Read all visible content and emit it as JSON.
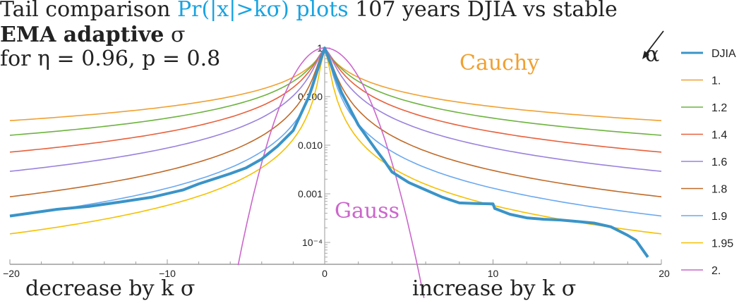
{
  "title": {
    "line1_prefix": "Tail comparison ",
    "line1_highlight": "Pr(|x|>kσ) plots",
    "line1_suffix": " 107 years DJIA vs stable",
    "line2_bold": "EMA adaptive",
    "line2_sigma": " σ",
    "line3": "for η = 0.96, p = 0.8"
  },
  "annotations": {
    "cauchy": "Cauchy",
    "gauss": "Gauss",
    "alpha": "α",
    "left_caption": "decrease by k σ",
    "right_caption": "increase by k σ"
  },
  "chart_data": {
    "type": "line",
    "title": "Tail comparison Pr(|x|>kσ) plots 107 years DJIA vs stable",
    "xlabel_left": "decrease by k σ",
    "xlabel_right": "increase by k σ",
    "ylabel": "",
    "xlim": [
      -20,
      20
    ],
    "ylim": [
      5e-05,
      1
    ],
    "yscale": "log",
    "x_ticks": [
      {
        "value": -20,
        "label": "−20"
      },
      {
        "value": -10,
        "label": "−10"
      },
      {
        "value": 0,
        "label": "0"
      },
      {
        "value": 10,
        "label": "10"
      },
      {
        "value": 20,
        "label": "20"
      }
    ],
    "y_ticks": [
      {
        "value": 1,
        "label": "1"
      },
      {
        "value": 0.1,
        "label": "0.100"
      },
      {
        "value": 0.01,
        "label": "0.010"
      },
      {
        "value": 0.001,
        "label": "0.001"
      },
      {
        "value": 0.0001,
        "label": "10⁻⁴"
      }
    ],
    "legend_title": "α",
    "legend_position": "right",
    "series": [
      {
        "name": "DJIA",
        "color": "#3a94c8",
        "width": 4,
        "x": [
          -20,
          -17,
          -15,
          -13,
          -11,
          -9,
          -8,
          -6,
          -5,
          -4,
          -3,
          -2,
          -1,
          0,
          1,
          2,
          3,
          3.5,
          4,
          5,
          6,
          7,
          8,
          9,
          10,
          10.1,
          11,
          12,
          13,
          14,
          15,
          16,
          17,
          18,
          18.5,
          19.2
        ],
        "y": [
          0.00035,
          0.00048,
          0.00055,
          0.00068,
          0.00085,
          0.0012,
          0.0016,
          0.0026,
          0.0034,
          0.0052,
          0.0095,
          0.02,
          0.1,
          1,
          0.12,
          0.026,
          0.0085,
          0.005,
          0.0028,
          0.0017,
          0.0012,
          0.00085,
          0.00065,
          0.00063,
          0.00062,
          0.0005,
          0.00038,
          0.00032,
          0.0003,
          0.00029,
          0.00027,
          0.00025,
          0.00021,
          0.00014,
          0.00011,
          5e-05
        ]
      },
      {
        "name": "1.",
        "color": "#f0a030",
        "width": 1.6,
        "alpha": 1.0,
        "tail_at_20": 0.032
      },
      {
        "name": "1.2",
        "color": "#6db33f",
        "width": 1.6,
        "alpha": 1.2,
        "tail_at_20": 0.016
      },
      {
        "name": "1.4",
        "color": "#e8603c",
        "width": 1.6,
        "alpha": 1.4,
        "tail_at_20": 0.0072
      },
      {
        "name": "1.6",
        "color": "#9a82dd",
        "width": 1.6,
        "alpha": 1.6,
        "tail_at_20": 0.0029
      },
      {
        "name": "1.8",
        "color": "#c06a28",
        "width": 1.6,
        "alpha": 1.8,
        "tail_at_20": 0.00087
      },
      {
        "name": "1.9",
        "color": "#6aa8f0",
        "width": 1.6,
        "alpha": 1.9,
        "tail_at_20": 0.00035
      },
      {
        "name": "1.95",
        "color": "#f5c000",
        "width": 1.6,
        "alpha": 1.95,
        "tail_at_20": 0.00015
      },
      {
        "name": "2.",
        "color": "#cc66cc",
        "width": 1.6,
        "alpha": 2.0,
        "gauss": true
      }
    ]
  }
}
